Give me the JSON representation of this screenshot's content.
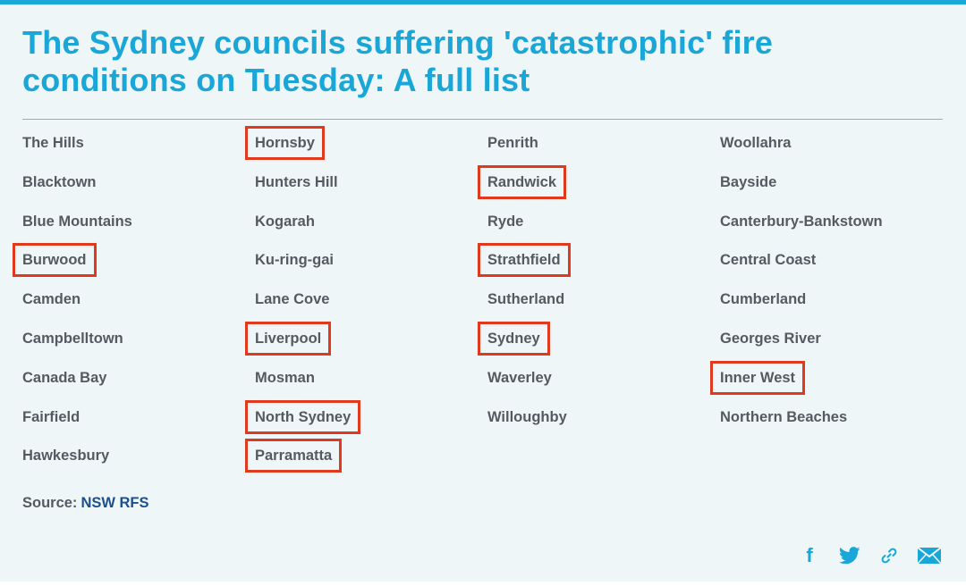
{
  "article": {
    "title": "The Sydney councils suffering 'catastrophic' fire conditions on Tuesday: A full list"
  },
  "councils": [
    [
      "The Hills",
      "Blacktown",
      "Blue Mountains",
      "Burwood",
      "Camden",
      "Campbelltown",
      "Canada Bay",
      "Fairfield",
      "Hawkesbury"
    ],
    [
      "Hornsby",
      "Hunters Hill",
      "Kogarah",
      "Ku-ring-gai",
      "Lane Cove",
      "Liverpool",
      "Mosman",
      "North Sydney",
      "Parramatta"
    ],
    [
      "Penrith",
      "Randwick",
      "Ryde",
      "Strathfield",
      "Sutherland",
      "Sydney",
      "Waverley",
      "Willoughby"
    ],
    [
      "Woollahra",
      "Bayside",
      "Canterbury-Bankstown",
      "Central Coast",
      "Cumberland",
      "Georges River",
      "Inner West",
      "Northern Beaches"
    ]
  ],
  "highlighted": [
    "Hornsby",
    "Randwick",
    "Burwood",
    "Strathfield",
    "Liverpool",
    "Sydney",
    "Inner West",
    "North Sydney",
    "Parramatta"
  ],
  "source": {
    "label": "Source:",
    "link": "NSW RFS"
  },
  "share": {
    "facebook_label": "f",
    "icons": [
      "facebook-icon",
      "twitter-icon",
      "link-icon",
      "email-icon"
    ]
  },
  "colors": {
    "accent": "#1aa7d8",
    "highlight_box": "#e03a1e",
    "source_link": "#1d4f8c"
  }
}
